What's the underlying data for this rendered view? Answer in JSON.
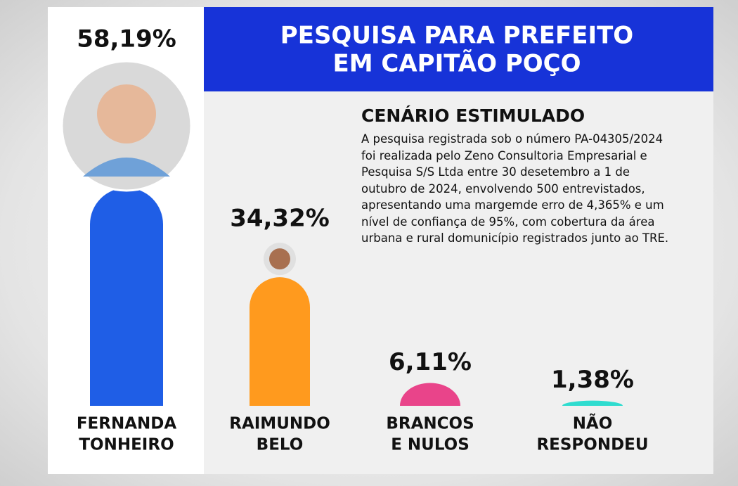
{
  "chart_data": {
    "type": "bar",
    "title": [
      "PESQUISA PARA PREFEITO",
      "EM CAPITÃO POÇO"
    ],
    "subtitle": "CENÁRIO ESTIMULADO",
    "note": "A pesquisa registrada sob o número PA-04305/2024 foi realizada pelo Zeno Consultoria Empresarial e Pesquisa S/S Ltda entre 30 desetembro a 1 de outubro de 2024, envolvendo 500 entrevistados, apresentando uma margemde erro de 4,365% e um nível de confiança de 95%, com cobertura da área urbana e rural domunicípio registrados junto ao TRE.",
    "categories": [
      [
        "FERNANDA",
        "TONHEIRO"
      ],
      [
        "RAIMUNDO",
        "BELO"
      ],
      [
        "BRANCOS",
        "E NULOS"
      ],
      [
        "NÃO",
        "RESPONDEU"
      ]
    ],
    "values": [
      58.19,
      34.32,
      6.11,
      1.38
    ],
    "value_labels": [
      "58,19%",
      "34,32%",
      "6,11%",
      "1,38%"
    ],
    "colors": [
      "#1f5ee6",
      "#ff9a1e",
      "#e9448a",
      "#2fdccf"
    ]
  }
}
